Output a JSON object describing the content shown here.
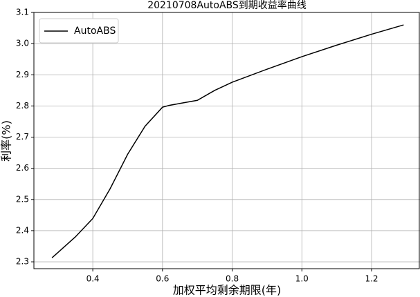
{
  "chart_data": {
    "type": "line",
    "title": "20210708AutoABS到期收益率曲线",
    "x_label": "加权平均剩余期限(年)",
    "y_label": "利率(%)",
    "x": [
      0.283,
      0.3,
      0.35,
      0.4,
      0.45,
      0.5,
      0.55,
      0.6,
      0.62,
      0.65,
      0.7,
      0.75,
      0.8,
      0.9,
      1.0,
      1.1,
      1.2,
      1.292
    ],
    "series": [
      {
        "name": "AutoABS",
        "color": "#000000",
        "values": [
          2.313,
          2.33,
          2.38,
          2.439,
          2.535,
          2.645,
          2.735,
          2.796,
          2.802,
          2.808,
          2.818,
          2.85,
          2.876,
          2.918,
          2.958,
          2.995,
          3.03,
          3.06
        ]
      }
    ],
    "xlim": [
      0.231,
      1.339
    ],
    "ylim": [
      2.278,
      3.1
    ],
    "xticks": [
      0.4,
      0.6,
      0.8,
      {
        "value": 1,
        "label": "1.0"
      },
      1.2
    ],
    "yticks": [
      2.3,
      2.4,
      2.5,
      2.6,
      2.7,
      2.8,
      2.9,
      {
        "value": 3,
        "label": "3.0"
      },
      3.1
    ],
    "grid": true,
    "legend": "upper left"
  }
}
